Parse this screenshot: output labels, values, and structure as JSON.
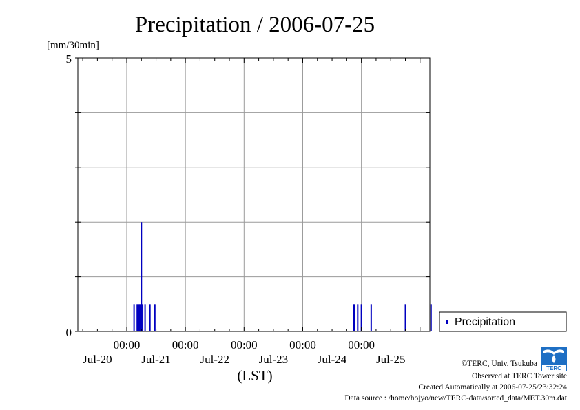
{
  "chart_data": {
    "type": "bar",
    "title": "Precipitation / 2006-07-25",
    "unit_label": "[mm/30min]",
    "xlabel": "(LST)",
    "y_ticks": [
      "0",
      "5"
    ],
    "ylim": [
      0,
      5
    ],
    "y_minor_step": 1,
    "x_range_hours": [
      -20,
      124
    ],
    "x_time_ticks": [
      "00:00",
      "00:00",
      "00:00",
      "00:00",
      "00:00"
    ],
    "x_date_ticks": [
      "Jul-20",
      "Jul-21",
      "Jul-22",
      "Jul-23",
      "Jul-24",
      "Jul-25"
    ],
    "grid": true,
    "legend_position": "right",
    "series": [
      {
        "name": "Precipitation",
        "color": "#0000c0",
        "x_hours": [
          3.0,
          4.3,
          5.0,
          5.5,
          6.0,
          6.5,
          7.5,
          9.5,
          11.5,
          93.0,
          94.5,
          96.0,
          100.0,
          114.0,
          124.5
        ],
        "values": [
          0.5,
          0.5,
          0.5,
          0.5,
          2.0,
          0.5,
          0.5,
          0.5,
          0.5,
          0.5,
          0.5,
          0.5,
          0.5,
          0.5,
          0.5
        ]
      }
    ]
  },
  "footer": {
    "copyright": "©TERC, Univ. Tsukuba",
    "site": "Observed at TERC Tower site",
    "created": "Created Automatically at 2006-07-25/23:32:24",
    "source": "Data source : /home/hojyo/new/TERC-data/sorted_data/MET.30m.dat"
  },
  "logo": {
    "text": "TERC",
    "color": "#1e6fc4"
  }
}
